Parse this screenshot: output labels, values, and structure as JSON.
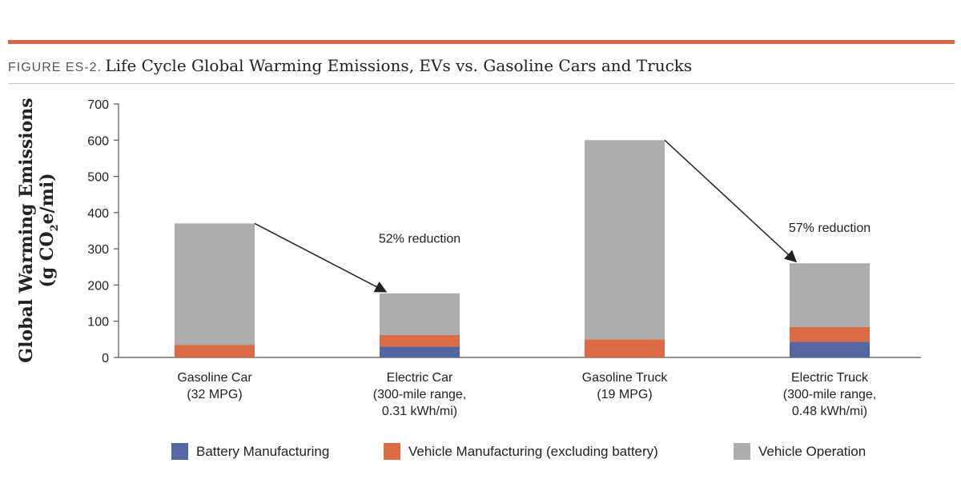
{
  "header": {
    "figure_prefix": "FIGURE ES-2.",
    "title": "Life Cycle Global Warming Emissions, EVs vs. Gasoline Cars and Trucks"
  },
  "colors": {
    "rule": "#d9664a",
    "battery": "#5467a3",
    "vehicle_manufacturing": "#db6b45",
    "vehicle_operation": "#abadae",
    "axis": "#555555",
    "text": "#222222"
  },
  "chart_data": {
    "type": "bar",
    "stacked": true,
    "title": "Life Cycle Global Warming Emissions, EVs vs. Gasoline Cars and Trucks",
    "ylabel_line1": "Global Warming Emissions",
    "ylabel_line2_prefix": "(g CO",
    "ylabel_line2_sub": "2",
    "ylabel_line2_suffix": "e/mi)",
    "ylim": [
      0,
      700
    ],
    "yticks": [
      0,
      100,
      200,
      300,
      400,
      500,
      600,
      700
    ],
    "categories": [
      {
        "lines": [
          "Gasoline Car",
          "(32 MPG)"
        ]
      },
      {
        "lines": [
          "Electric Car",
          "(300-mile range,",
          "0.31 kWh/mi)"
        ]
      },
      {
        "lines": [
          "Gasoline Truck",
          "(19 MPG)"
        ]
      },
      {
        "lines": [
          "Electric Truck",
          "(300-mile range,",
          "0.48 kWh/mi)"
        ]
      }
    ],
    "series": [
      {
        "name": "Battery Manufacturing",
        "color_key": "battery",
        "values": [
          0,
          30,
          0,
          43
        ]
      },
      {
        "name": "Vehicle Manufacturing (excluding battery)",
        "color_key": "vehicle_manufacturing",
        "values": [
          35,
          32,
          50,
          41
        ]
      },
      {
        "name": "Vehicle Operation",
        "color_key": "vehicle_operation",
        "values": [
          335,
          115,
          550,
          176
        ]
      }
    ],
    "annotations": [
      {
        "text": "52% reduction",
        "from_category": 0,
        "to_category": 1,
        "label_value": 330
      },
      {
        "text": "57% reduction",
        "from_category": 2,
        "to_category": 3,
        "label_value": 360
      }
    ],
    "legend_position": "bottom"
  }
}
